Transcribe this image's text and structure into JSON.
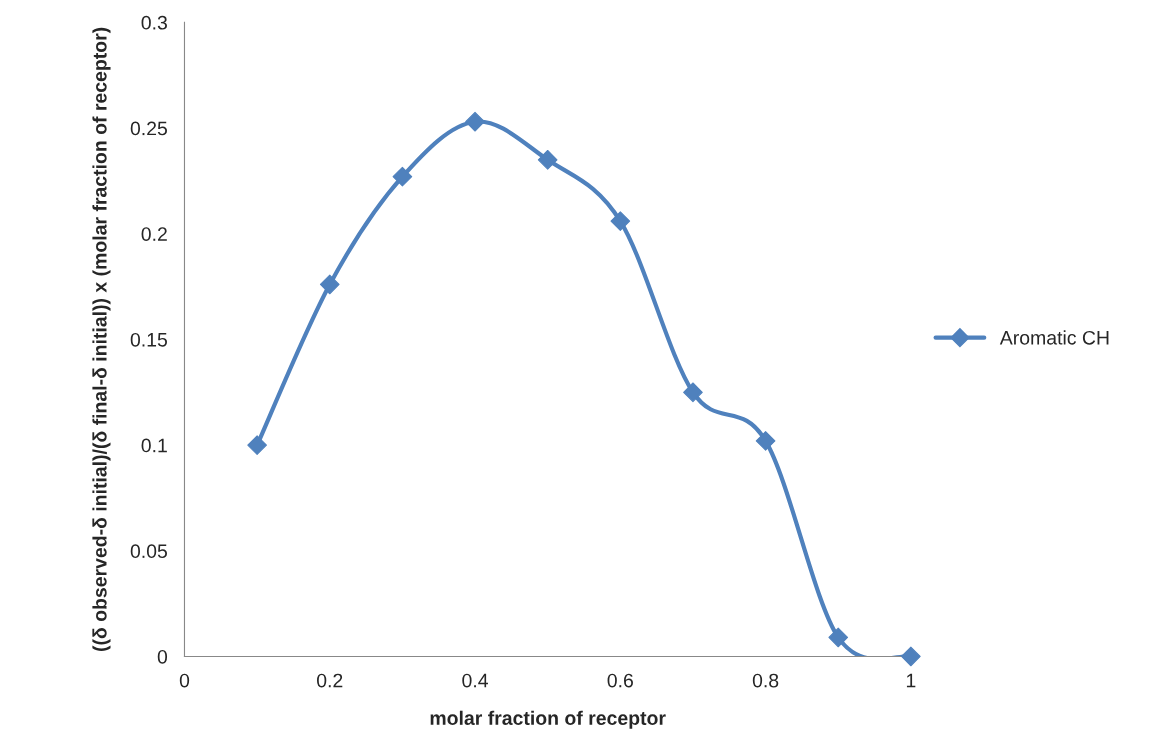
{
  "chart_data": {
    "type": "line",
    "xlabel": "molar fraction of receptor",
    "ylabel": "((δ observed-δ initial)/(δ final-δ initial)) x (molar fraction of receptor)",
    "x": [
      0.1,
      0.2,
      0.3,
      0.4,
      0.5,
      0.6,
      0.7,
      0.8,
      0.9,
      1
    ],
    "series": [
      {
        "name": "Aromatic CH",
        "color": "#4f81bd",
        "values": [
          0.1,
          0.176,
          0.227,
          0.253,
          0.235,
          0.206,
          0.125,
          0.102,
          0.009,
          0
        ]
      }
    ],
    "xlim": [
      0,
      1
    ],
    "xticks": [
      0,
      0.2,
      0.4,
      0.6,
      0.8,
      1
    ],
    "ylim": [
      0,
      0.3
    ],
    "yticks": [
      0,
      0.05,
      0.1,
      0.15,
      0.2,
      0.25,
      0.3
    ],
    "grid": false,
    "legend": "right",
    "marker": "diamond",
    "line_style": "solid"
  }
}
